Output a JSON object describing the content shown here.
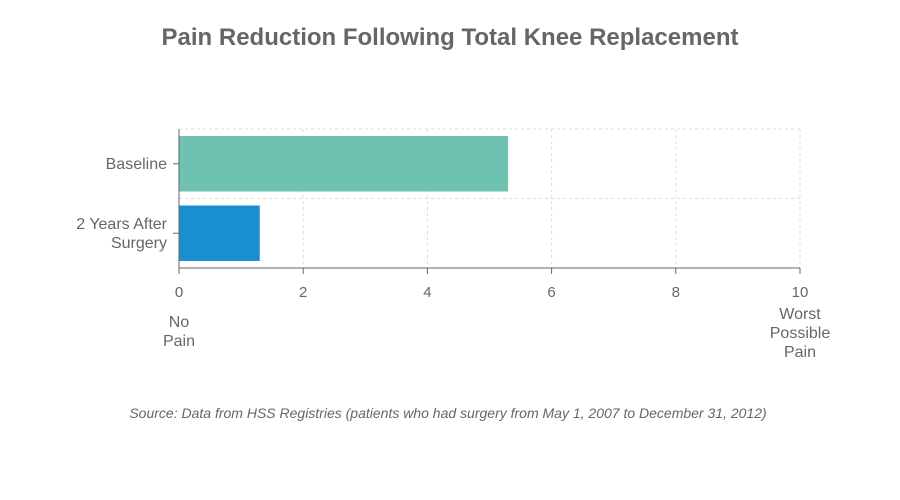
{
  "chart_data": {
    "type": "bar",
    "orientation": "horizontal",
    "title": "Pain Reduction Following Total Knee Replacement",
    "categories": [
      "Baseline",
      "2 Years After Surgery"
    ],
    "category_lines": [
      [
        "Baseline"
      ],
      [
        "2 Years After",
        "Surgery"
      ]
    ],
    "values": [
      5.3,
      1.3
    ],
    "colors": [
      "#6fc1b0",
      "#1a8fd0"
    ],
    "xlim": [
      0,
      10
    ],
    "x_ticks": [
      0,
      2,
      4,
      6,
      8,
      10
    ],
    "x_tick_labels": [
      "0",
      "2",
      "4",
      "6",
      "8",
      "10"
    ],
    "anchor_labels": {
      "min": [
        "No",
        "Pain"
      ],
      "max": [
        "Worst",
        "Possible",
        "Pain"
      ]
    },
    "grid": true,
    "source": "Source: Data from HSS Registries (patients who had surgery from May 1, 2007 to December 31, 2012)"
  }
}
